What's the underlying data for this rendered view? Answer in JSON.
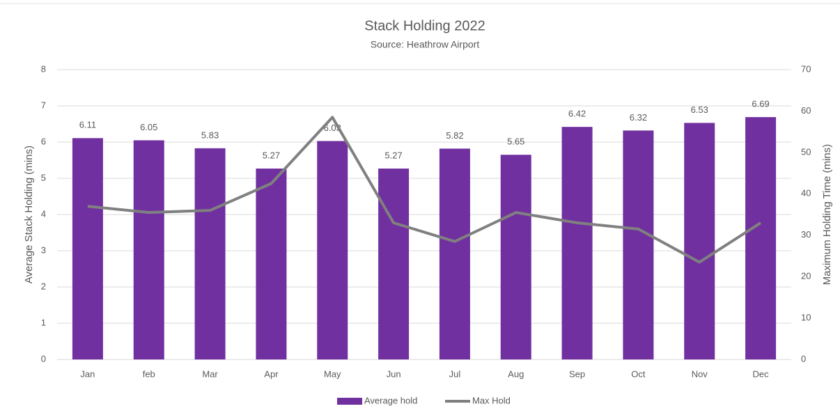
{
  "chart_data": {
    "type": "bar",
    "title": "Stack Holding 2022",
    "subtitle": "Source: Heathrow Airport",
    "ylabel": "Average Stack Holding (mins)",
    "y2label": "Maximum Holding Time (mins)",
    "categories": [
      "Jan",
      "feb",
      "Mar",
      "Apr",
      "May",
      "Jun",
      "Jul",
      "Aug",
      "Sep",
      "Oct",
      "Nov",
      "Dec"
    ],
    "series": [
      {
        "name": "Average hold",
        "type": "bar",
        "color": "#7030a0",
        "values": [
          6.11,
          6.05,
          5.83,
          5.27,
          6.03,
          5.27,
          5.82,
          5.65,
          6.42,
          6.32,
          6.53,
          6.69
        ]
      },
      {
        "name": "Max Hold",
        "type": "line",
        "axis": "y2",
        "color": "#808080",
        "values": [
          37,
          35.5,
          36,
          42.5,
          58.5,
          33,
          28.5,
          35.5,
          33,
          31.5,
          23.5,
          33
        ]
      }
    ],
    "ylim": [
      0,
      8
    ],
    "yticks": [
      0,
      1,
      2,
      3,
      4,
      5,
      6,
      7,
      8
    ],
    "y2lim": [
      0,
      70
    ],
    "y2ticks": [
      0,
      10,
      20,
      30,
      40,
      50,
      60,
      70
    ],
    "grid": true,
    "legend": "bottom"
  }
}
